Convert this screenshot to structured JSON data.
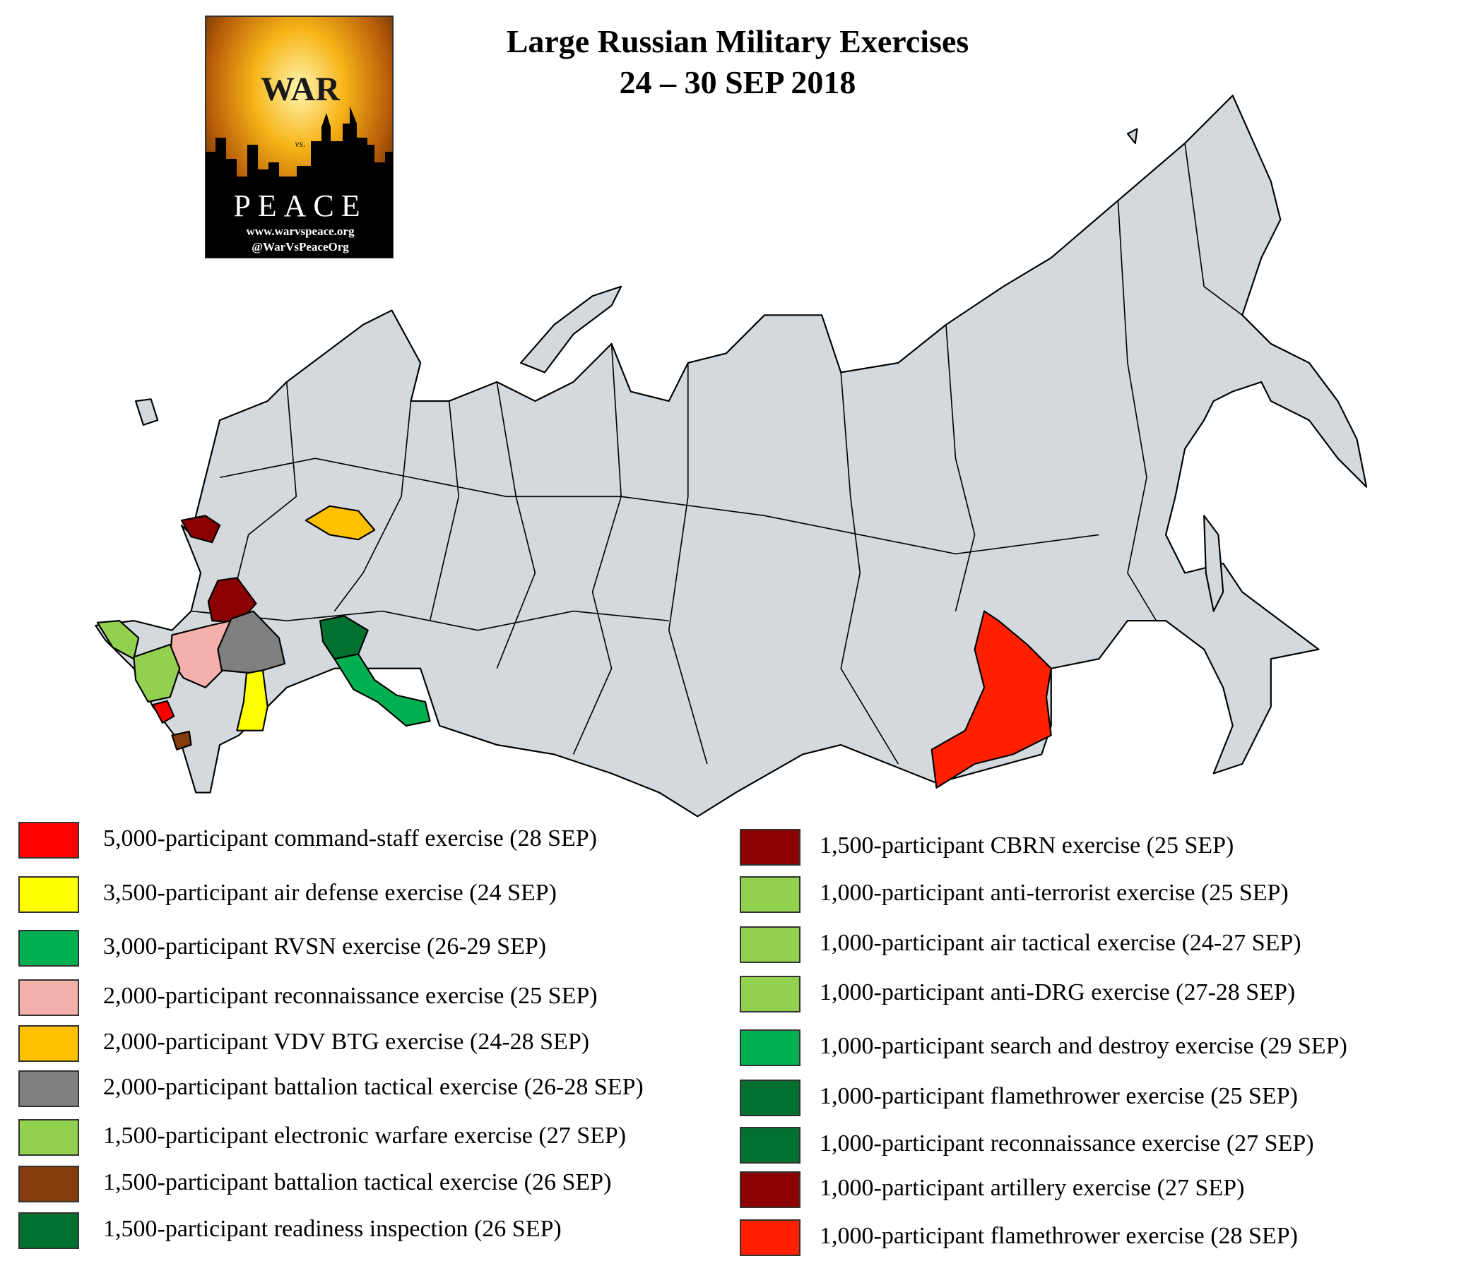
{
  "header": {
    "title": "Large Russian Military Exercises",
    "subtitle": "24 – 30 SEP 2018"
  },
  "logo": {
    "war": "WAR",
    "vs": "vs.",
    "peace": "PEACE",
    "url": "www.warvspeace.org",
    "handle": "@WarVsPeaceOrg"
  },
  "legend": {
    "left": [
      {
        "color": "#ff0000",
        "label": "5,000-participant command-staff exercise (28 SEP)"
      },
      {
        "color": "#ffff00",
        "label": "3,500-participant air defense exercise (24 SEP)"
      },
      {
        "color": "#00b050",
        "label": "3,000-participant RVSN exercise (26-29 SEP)"
      },
      {
        "color": "#f4b0aa",
        "label": "2,000-participant reconnaissance exercise (25 SEP)"
      },
      {
        "color": "#ffc000",
        "label": "2,000-participant VDV BTG exercise (24-28 SEP)"
      },
      {
        "color": "#7f7f7f",
        "label": "2,000-participant battalion tactical exercise (26-28 SEP)"
      },
      {
        "color": "#92d050",
        "label": "1,500-participant electronic warfare exercise (27 SEP)"
      },
      {
        "color": "#843c0c",
        "label": "1,500-participant battalion tactical exercise (26 SEP)"
      },
      {
        "color": "#00702e",
        "label": "1,500-participant readiness inspection (26 SEP)"
      }
    ],
    "right": [
      {
        "color": "#8b0000",
        "label": "1,500-participant CBRN exercise (25 SEP)"
      },
      {
        "color": "#92d050",
        "label": "1,000-participant anti-terrorist exercise (25 SEP)"
      },
      {
        "color": "#92d050",
        "label": "1,000-participant air tactical exercise (24-27 SEP)"
      },
      {
        "color": "#92d050",
        "label": "1,000-participant anti-DRG exercise (27-28 SEP)"
      },
      {
        "color": "#00b050",
        "label": "1,000-participant search and destroy exercise (29 SEP)"
      },
      {
        "color": "#00702e",
        "label": "1,000-participant flamethrower exercise (25 SEP)"
      },
      {
        "color": "#00702e",
        "label": "1,000-participant reconnaissance exercise (27 SEP)"
      },
      {
        "color": "#8b0000",
        "label": "1,000-participant artillery exercise (27 SEP)"
      },
      {
        "color": "#ff2000",
        "label": "1,000-participant flamethrower exercise (28 SEP)"
      }
    ]
  }
}
